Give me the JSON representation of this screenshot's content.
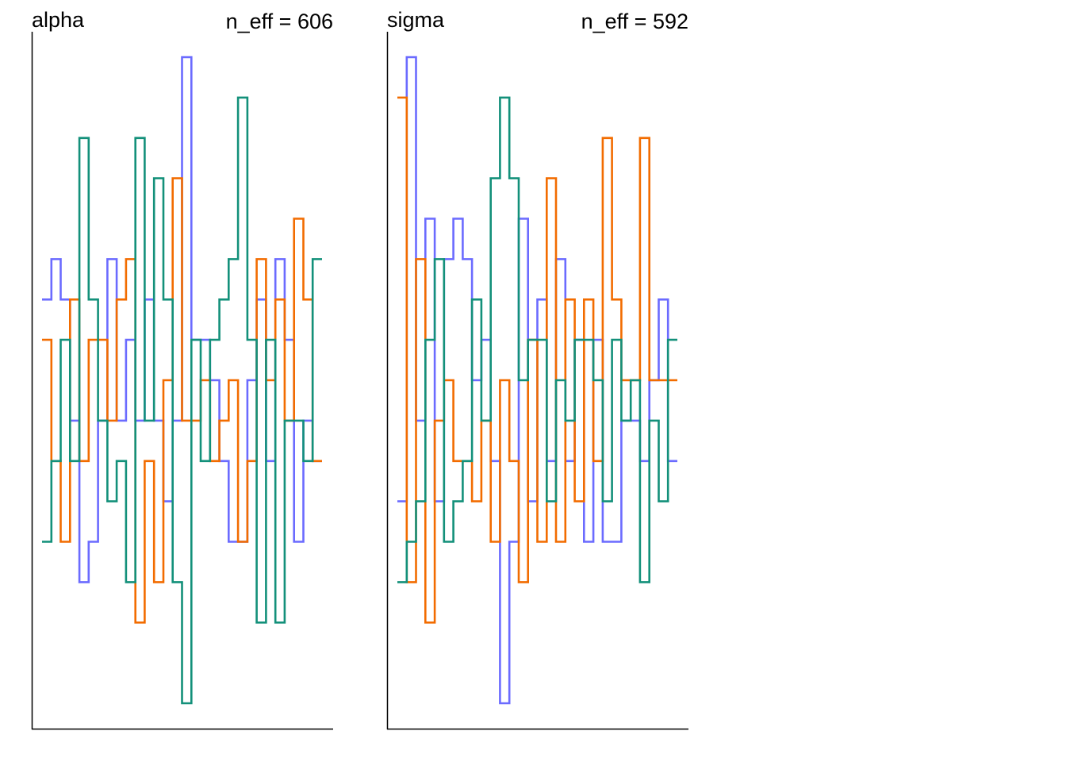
{
  "colors": {
    "chain1": "#6B6BFF",
    "chain2": "#F26C00",
    "chain3": "#13907A"
  },
  "chart_data": [
    {
      "type": "line",
      "subtype": "trank-step",
      "title": "alpha",
      "annotation": "n_eff = 606",
      "xlabel": "",
      "ylabel": "",
      "grid": false,
      "bins": 30,
      "ylim": [
        0,
        16
      ],
      "series": [
        {
          "color": "#6B6BFF",
          "values": [
            10,
            11,
            10,
            7,
            3,
            4,
            7,
            11,
            7,
            9,
            7,
            10,
            7,
            5,
            7,
            16,
            9,
            9,
            8,
            6,
            4,
            4,
            8,
            10,
            6,
            11,
            9,
            4,
            7,
            6
          ]
        },
        {
          "color": "#F26C00",
          "values": [
            9,
            6,
            4,
            10,
            6,
            9,
            9,
            7,
            10,
            11,
            2,
            6,
            3,
            8,
            13,
            7,
            7,
            8,
            6,
            7,
            8,
            4,
            6,
            11,
            8,
            10,
            7,
            12,
            10,
            6
          ]
        },
        {
          "color": "#13907A",
          "values": [
            4,
            6,
            9,
            6,
            14,
            10,
            7,
            5,
            6,
            3,
            14,
            7,
            13,
            10,
            3,
            0,
            9,
            6,
            9,
            10,
            11,
            15,
            9,
            2,
            9,
            2,
            7,
            7,
            6,
            11
          ]
        }
      ]
    },
    {
      "type": "line",
      "subtype": "trank-step",
      "title": "sigma",
      "annotation": "n_eff = 592",
      "xlabel": "",
      "ylabel": "",
      "grid": false,
      "bins": 30,
      "ylim": [
        0,
        16
      ],
      "series": [
        {
          "color": "#6B6BFF",
          "values": [
            5,
            16,
            7,
            12,
            5,
            11,
            12,
            11,
            8,
            9,
            6,
            0,
            4,
            12,
            5,
            10,
            6,
            11,
            6,
            9,
            4,
            9,
            4,
            4,
            7,
            7,
            6,
            8,
            10,
            6
          ]
        },
        {
          "color": "#F26C00",
          "values": [
            15,
            3,
            11,
            2,
            7,
            8,
            6,
            6,
            5,
            7,
            4,
            8,
            6,
            3,
            9,
            4,
            13,
            4,
            10,
            5,
            10,
            6,
            14,
            10,
            8,
            8,
            14,
            8,
            8,
            8
          ]
        },
        {
          "color": "#13907A",
          "values": [
            3,
            4,
            5,
            9,
            11,
            4,
            5,
            6,
            10,
            7,
            13,
            15,
            13,
            8,
            9,
            9,
            5,
            8,
            7,
            9,
            9,
            8,
            5,
            9,
            7,
            8,
            3,
            7,
            5,
            9
          ]
        }
      ]
    }
  ]
}
